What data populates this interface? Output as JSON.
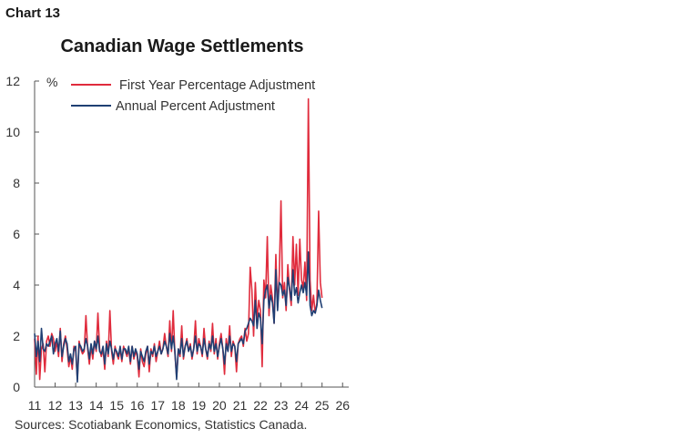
{
  "header": {
    "chart_label": "Chart 13"
  },
  "footer": {
    "sources": "Sources: Scotiabank Economics, Statistics Canada."
  },
  "chart_data": {
    "type": "line",
    "title": "Canadian Wage Settlements",
    "ylabel": "%",
    "xlabel": "",
    "ylim": [
      0,
      12
    ],
    "yticks": [
      0,
      2,
      4,
      6,
      8,
      10,
      12
    ],
    "xlim": [
      2011,
      2026.3
    ],
    "xtick_labels": [
      "11",
      "12",
      "13",
      "14",
      "15",
      "16",
      "17",
      "18",
      "19",
      "20",
      "21",
      "22",
      "23",
      "24",
      "25",
      "26"
    ],
    "legend_position": "top",
    "grid": false,
    "series": [
      {
        "name": "First Year Percentage Adjustment",
        "color": "#e02b3c",
        "start_year": 2011,
        "freq": "monthly",
        "values": [
          1.9,
          0.5,
          2.0,
          0.3,
          1.5,
          1.7,
          0.6,
          1.8,
          2.0,
          1.6,
          2.1,
          1.9,
          1.4,
          1.8,
          1.2,
          2.3,
          1.0,
          1.7,
          2.0,
          1.5,
          0.8,
          1.2,
          0.7,
          1.6,
          1.4,
          0.3,
          1.8,
          1.5,
          1.3,
          1.4,
          2.8,
          1.5,
          0.9,
          1.6,
          1.1,
          1.8,
          1.4,
          2.9,
          1.5,
          1.2,
          1.5,
          0.7,
          1.8,
          1.2,
          3.0,
          1.4,
          0.9,
          1.6,
          1.3,
          1.1,
          1.5,
          1.0,
          1.6,
          1.4,
          1.2,
          1.5,
          0.9,
          1.6,
          1.1,
          1.4,
          1.2,
          0.4,
          1.5,
          1.0,
          0.8,
          1.3,
          1.6,
          0.6,
          1.5,
          1.2,
          1.7,
          1.0,
          1.4,
          1.8,
          1.3,
          1.5,
          2.1,
          1.6,
          1.2,
          2.6,
          1.4,
          3.0,
          1.3,
          0.4,
          1.5,
          1.2,
          2.4,
          1.1,
          1.6,
          1.9,
          1.4,
          1.7,
          1.1,
          1.5,
          2.6,
          1.3,
          1.9,
          1.6,
          1.2,
          2.3,
          1.5,
          1.1,
          1.8,
          1.4,
          2.5,
          1.3,
          1.9,
          1.1,
          1.7,
          2.1,
          1.5,
          0.5,
          1.9,
          1.4,
          2.4,
          1.2,
          1.8,
          1.6,
          0.6,
          1.7,
          1.9,
          2.0,
          1.6,
          2.3,
          1.8,
          2.1,
          4.7,
          3.8,
          2.0,
          4.1,
          2.6,
          3.4,
          3.0,
          0.8,
          4.2,
          3.5,
          5.9,
          2.8,
          4.0,
          3.5,
          2.5,
          5.2,
          3.1,
          4.4,
          7.3,
          3.5,
          4.1,
          3.0,
          4.8,
          3.8,
          3.2,
          5.9,
          4.0,
          5.6,
          3.6,
          5.8,
          4.2,
          3.9,
          4.9,
          3.4,
          11.3,
          4.2,
          3.0,
          3.6,
          2.9,
          3.3,
          6.9,
          4.1,
          3.5
        ]
      },
      {
        "name": "Annual Percent Adjustment",
        "color": "#1f3f73",
        "start_year": 2011,
        "freq": "monthly",
        "values": [
          2.1,
          1.2,
          1.8,
          1.0,
          2.3,
          1.5,
          1.4,
          1.7,
          1.6,
          1.8,
          2.0,
          1.3,
          1.7,
          1.9,
          1.4,
          2.2,
          1.2,
          1.6,
          1.9,
          1.7,
          1.0,
          1.3,
          0.9,
          1.5,
          1.6,
          0.2,
          1.7,
          1.6,
          1.4,
          1.5,
          1.9,
          1.6,
          1.1,
          1.7,
          1.3,
          1.8,
          1.5,
          2.0,
          1.4,
          1.3,
          1.6,
          0.9,
          1.7,
          1.3,
          1.8,
          1.5,
          1.1,
          1.5,
          1.4,
          1.2,
          1.6,
          1.1,
          1.5,
          1.5,
          1.3,
          1.6,
          1.0,
          1.6,
          1.2,
          1.5,
          1.3,
          0.7,
          1.4,
          1.2,
          1.0,
          1.4,
          1.6,
          0.9,
          1.4,
          1.3,
          1.6,
          1.2,
          1.4,
          1.6,
          1.3,
          1.5,
          1.8,
          1.6,
          1.3,
          2.1,
          1.5,
          2.0,
          1.4,
          0.3,
          1.5,
          1.3,
          1.9,
          1.2,
          1.6,
          1.8,
          1.4,
          1.6,
          1.2,
          1.5,
          2.0,
          1.4,
          1.7,
          1.6,
          1.3,
          1.9,
          1.5,
          1.2,
          1.7,
          1.5,
          2.0,
          1.4,
          1.7,
          1.2,
          1.6,
          1.9,
          1.5,
          0.9,
          1.7,
          1.4,
          2.0,
          1.4,
          1.7,
          1.6,
          1.0,
          1.7,
          1.8,
          1.9,
          1.7,
          2.2,
          2.3,
          2.5,
          2.7,
          2.6,
          2.4,
          3.4,
          2.3,
          2.9,
          2.7,
          1.7,
          3.4,
          3.8,
          4.0,
          3.1,
          3.6,
          3.3,
          2.5,
          4.6,
          3.0,
          4.1,
          4.0,
          3.6,
          3.8,
          3.2,
          4.3,
          3.9,
          3.4,
          4.6,
          3.6,
          3.9,
          3.3,
          3.7,
          4.0,
          3.7,
          4.1,
          3.6,
          5.3,
          3.2,
          2.8,
          3.0,
          2.9,
          3.2,
          3.8,
          3.4,
          3.1
        ]
      }
    ]
  }
}
